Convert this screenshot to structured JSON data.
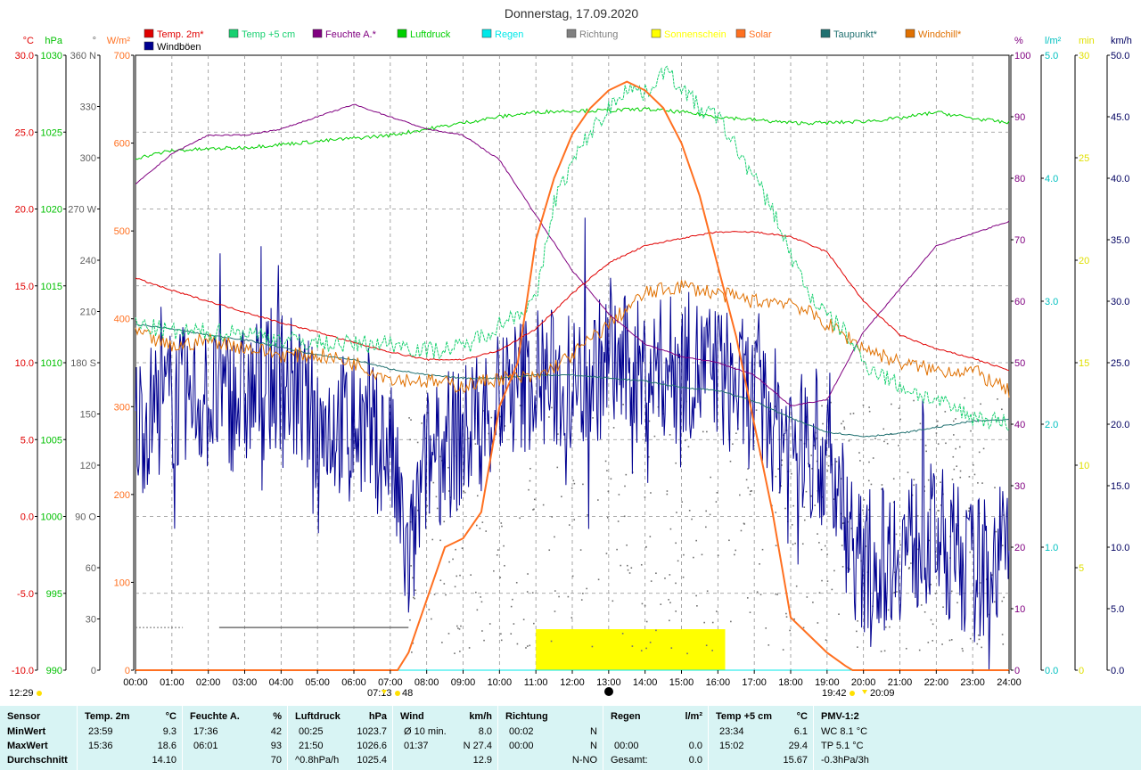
{
  "title": "Donnerstag, 17.09.2020",
  "legend": [
    {
      "label": "Temp. 2m*",
      "color": "#e00000"
    },
    {
      "label": "Temp +5 cm",
      "color": "#18d070"
    },
    {
      "label": "Feuchte A.*",
      "color": "#800080"
    },
    {
      "label": "Luftdruck",
      "color": "#00d000"
    },
    {
      "label": "Regen",
      "color": "#00e8e8"
    },
    {
      "label": "Richtung",
      "color": "#808080"
    },
    {
      "label": "Sonnenschein",
      "color": "#ffff00"
    },
    {
      "label": "Solar",
      "color": "#ff7020"
    },
    {
      "label": "Taupunkt*",
      "color": "#207070"
    },
    {
      "label": "Windchill*",
      "color": "#e07000"
    },
    {
      "label": "Windböen",
      "color": "#000090"
    }
  ],
  "axes": {
    "left": [
      {
        "unit": "°C",
        "color": "#e00000",
        "ticks": [
          "30.0",
          "25.0",
          "20.0",
          "15.0",
          "10.0",
          "5.0",
          "0.0",
          "-5.0",
          "-10.0"
        ]
      },
      {
        "unit": "hPa",
        "color": "#00c000",
        "ticks": [
          "1030",
          "1025",
          "1020",
          "1015",
          "1010",
          "1005",
          "1000",
          "995",
          "990"
        ]
      },
      {
        "unit": "°",
        "color": "#606060",
        "ticks": [
          "360 N",
          "330",
          "300",
          "270 W",
          "240",
          "210",
          "180 S",
          "150",
          "120",
          "90 O",
          "60",
          "30",
          "0"
        ]
      },
      {
        "unit": "W/m²",
        "color": "#ff7020",
        "ticks": [
          "700",
          "600",
          "500",
          "400",
          "300",
          "200",
          "100",
          "0"
        ]
      }
    ],
    "right": [
      {
        "unit": "%",
        "color": "#800080",
        "ticks": [
          "100",
          "90",
          "80",
          "70",
          "60",
          "50",
          "40",
          "30",
          "20",
          "10",
          "0"
        ]
      },
      {
        "unit": "l/m²",
        "color": "#00c0c0",
        "ticks": [
          "5.0",
          "4.0",
          "3.0",
          "2.0",
          "1.0",
          "0.0"
        ]
      },
      {
        "unit": "min",
        "color": "#e0e000",
        "ticks": [
          "30",
          "25",
          "20",
          "15",
          "10",
          "5",
          "0"
        ]
      },
      {
        "unit": "km/h",
        "color": "#000060",
        "ticks": [
          "50.0",
          "45.0",
          "40.0",
          "35.0",
          "30.0",
          "25.0",
          "20.0",
          "15.0",
          "10.0",
          "5.0",
          "0.0"
        ]
      }
    ],
    "x_ticks": [
      "00:00",
      "01:00",
      "02:00",
      "03:00",
      "04:00",
      "05:00",
      "06:00",
      "07:00",
      "08:00",
      "09:00",
      "10:00",
      "11:00",
      "12:00",
      "13:00",
      "14:00",
      "15:00",
      "16:00",
      "17:00",
      "18:00",
      "19:00",
      "20:00",
      "21:00",
      "22:00",
      "23:00",
      "24:00"
    ],
    "markers": {
      "moon": "12:29",
      "sunrise": "07:13",
      "sunrise_min": "48",
      "sunset": "19:42",
      "sunset2": "20:09"
    }
  },
  "chart_data": {
    "type": "line",
    "title": "Donnerstag, 17.09.2020",
    "x_range": [
      "00:00",
      "24:00"
    ],
    "series": [
      {
        "name": "Temp. 2m*",
        "unit": "°C",
        "color": "#e00000",
        "x": [
          0,
          1,
          2,
          3,
          4,
          5,
          6,
          7,
          8,
          9,
          10,
          11,
          12,
          13,
          14,
          15,
          16,
          17,
          18,
          19,
          20,
          21,
          22,
          23,
          24
        ],
        "y": [
          15.5,
          14.7,
          14.0,
          13.3,
          12.6,
          12.0,
          11.3,
          10.7,
          10.2,
          10.2,
          10.8,
          12.2,
          14.5,
          16.5,
          17.6,
          18.1,
          18.5,
          18.5,
          18.2,
          17.2,
          14.0,
          11.8,
          10.9,
          10.3,
          9.5
        ]
      },
      {
        "name": "Temp +5 cm",
        "unit": "°C",
        "color": "#18d070",
        "x": [
          0,
          1,
          2,
          3,
          4,
          5,
          6,
          7,
          8,
          9,
          10,
          11,
          11.5,
          12,
          12.5,
          13,
          13.5,
          14,
          14.5,
          15,
          15.5,
          16,
          16.5,
          17,
          17.5,
          18,
          18.5,
          19,
          19.5,
          20,
          21,
          22,
          23,
          24
        ],
        "y": [
          12.5,
          12.0,
          12.0,
          12.0,
          11.5,
          11.3,
          11.2,
          11.3,
          10.8,
          11.0,
          12.5,
          14.0,
          20.5,
          23.0,
          25.0,
          26.5,
          28.0,
          27.5,
          29.0,
          28.0,
          26.5,
          26.0,
          24.0,
          22.0,
          20.0,
          17.0,
          14.5,
          13.0,
          12.0,
          10.0,
          8.5,
          7.5,
          6.5,
          6.1
        ]
      },
      {
        "name": "Feuchte A.*",
        "unit": "%",
        "color": "#800080",
        "x": [
          0,
          1,
          2,
          3,
          4,
          5,
          6,
          7,
          8,
          9,
          10,
          11,
          12,
          13,
          14,
          15,
          16,
          17,
          18,
          19,
          20,
          21,
          22,
          23,
          24
        ],
        "y": [
          79,
          84,
          87,
          87,
          88,
          90,
          92,
          90,
          88,
          87,
          83,
          74,
          65,
          58,
          53,
          51,
          50,
          48,
          43,
          44,
          55,
          62,
          69,
          71,
          73
        ]
      },
      {
        "name": "Luftdruck",
        "unit": "hPa",
        "color": "#00d000",
        "x": [
          0,
          1,
          2,
          3,
          4,
          5,
          6,
          7,
          8,
          9,
          10,
          11,
          12,
          13,
          14,
          15,
          16,
          17,
          18,
          19,
          20,
          21,
          22,
          23,
          24
        ],
        "y": [
          1023.3,
          1023.8,
          1023.9,
          1024.0,
          1024.2,
          1024.4,
          1024.6,
          1024.8,
          1025.2,
          1025.6,
          1026.0,
          1026.3,
          1026.4,
          1026.4,
          1026.5,
          1026.3,
          1026.0,
          1025.8,
          1025.6,
          1025.6,
          1025.7,
          1025.9,
          1026.3,
          1025.9,
          1025.6
        ]
      },
      {
        "name": "Taupunkt*",
        "unit": "°C",
        "color": "#207070",
        "x": [
          0,
          1,
          2,
          3,
          4,
          5,
          6,
          7,
          8,
          9,
          10,
          11,
          12,
          13,
          14,
          15,
          16,
          17,
          18,
          19,
          20,
          21,
          22,
          23,
          24
        ],
        "y": [
          12.5,
          12.2,
          11.8,
          11.5,
          11.0,
          10.5,
          10.2,
          9.6,
          9.2,
          9.0,
          9.0,
          9.2,
          9.2,
          9.0,
          8.8,
          8.4,
          8.2,
          7.5,
          6.4,
          5.5,
          5.2,
          5.4,
          5.8,
          6.2,
          6.3
        ]
      },
      {
        "name": "Windchill*",
        "unit": "°C",
        "color": "#e07000",
        "x": [
          0,
          1,
          2,
          3,
          4,
          5,
          6,
          7,
          8,
          9,
          10,
          11,
          12,
          13,
          14,
          15,
          16,
          17,
          18,
          19,
          20,
          21,
          22,
          23,
          24
        ],
        "y": [
          12.0,
          11.0,
          11.5,
          11.0,
          10.5,
          10.5,
          10.0,
          9.0,
          8.8,
          8.5,
          9.0,
          9.0,
          10.5,
          12.5,
          14.5,
          15.0,
          14.5,
          14.0,
          14.0,
          12.5,
          11.0,
          10.0,
          9.5,
          9.5,
          8.1
        ]
      },
      {
        "name": "Solar",
        "unit": "W/m²",
        "color": "#ff7020",
        "x": [
          0,
          7.2,
          7.5,
          8,
          8.5,
          9,
          9.5,
          10,
          10.5,
          11,
          11.5,
          12,
          12.5,
          13,
          13.5,
          14,
          14.5,
          15,
          15.5,
          16,
          16.5,
          17,
          17.5,
          18,
          18.5,
          19,
          19.5,
          19.7,
          20,
          24
        ],
        "y": [
          0,
          0,
          20,
          80,
          140,
          150,
          180,
          300,
          350,
          490,
          560,
          610,
          640,
          660,
          670,
          660,
          640,
          600,
          540,
          460,
          380,
          280,
          180,
          60,
          40,
          20,
          5,
          0,
          0,
          0
        ]
      },
      {
        "name": "Windböen",
        "unit": "km/h",
        "color": "#000090",
        "x": [
          0,
          1,
          2,
          3,
          4,
          5,
          6,
          7,
          7.5,
          8,
          9,
          10,
          11,
          12,
          13,
          14,
          15,
          16,
          17,
          18,
          19,
          20,
          21,
          22,
          23,
          24
        ],
        "y": [
          20,
          22,
          22,
          22,
          24,
          20,
          20,
          18,
          8,
          17,
          19,
          22,
          24,
          23,
          25,
          24,
          25,
          24,
          22,
          19,
          17,
          8,
          10,
          11,
          8,
          10
        ]
      },
      {
        "name": "Regen",
        "unit": "l/m²",
        "color": "#00e8e8",
        "x": [
          0,
          24
        ],
        "y": [
          0,
          0
        ]
      },
      {
        "name": "Sonnenschein",
        "unit": "min",
        "color": "#ffff00",
        "x": [
          11.0,
          16.2
        ],
        "y": [
          2,
          2
        ]
      }
    ]
  },
  "stats": {
    "headers": [
      "Sensor",
      "Temp. 2m",
      "°C",
      "Feuchte A.",
      "%",
      "Luftdruck",
      "hPa",
      "Wind",
      "km/h",
      "Richtung",
      "Regen",
      "l/m²",
      "Temp +5 cm",
      "°C",
      "PMV-1:2"
    ],
    "rows": [
      {
        "label": "MinWert",
        "t_time": "23:59",
        "t_val": "9.3",
        "h_time": "17:36",
        "h_val": "42",
        "p_time": "00:25",
        "p_val": "1023.7",
        "w_time": "Ø 10 min.",
        "w_val": "8.0",
        "d_time": "00:02",
        "d_val": "N",
        "r_time": "",
        "r_val": "",
        "t5_time": "23:34",
        "t5_val": "6.1",
        "pmv": "WC 8.1 °C"
      },
      {
        "label": "MaxWert",
        "t_time": "15:36",
        "t_val": "18.6",
        "h_time": "06:01",
        "h_val": "93",
        "p_time": "21:50",
        "p_val": "1026.6",
        "w_time": "01:37",
        "w_val": "N 27.4",
        "d_time": "00:00",
        "d_val": "N",
        "r_time": "00:00",
        "r_val": "0.0",
        "t5_time": "15:02",
        "t5_val": "29.4",
        "pmv": "TP 5.1 °C"
      },
      {
        "label": "Durchschnitt",
        "t_time": "",
        "t_val": "14.10",
        "h_time": "",
        "h_val": "70",
        "p_time": "^0.8hPa/h",
        "p_val": "1025.4",
        "w_time": "",
        "w_val": "12.9",
        "d_time": "",
        "d_val": "N-NO",
        "r_time": "Gesamt:",
        "r_val": "0.0",
        "t5_time": "",
        "t5_val": "15.67",
        "pmv": "-0.3hPa/3h"
      }
    ]
  }
}
